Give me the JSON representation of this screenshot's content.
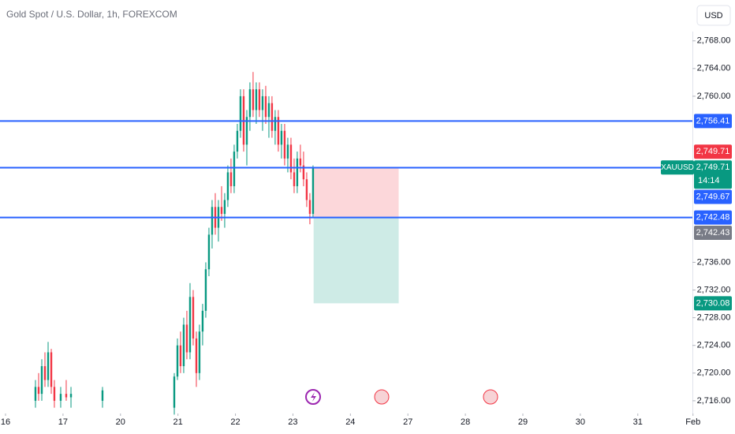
{
  "chart_data": {
    "type": "candlestick",
    "title": "Gold Spot / U.S. Dollar, 1h, FOREXCOM",
    "currency": "USD",
    "up_color": "#089981",
    "down_color": "#f23645",
    "xlim": [
      -0.096,
      11.95
    ],
    "xticks": [
      {
        "value": 0,
        "label": "16"
      },
      {
        "value": 1,
        "label": "17"
      },
      {
        "value": 2,
        "label": "20"
      },
      {
        "value": 3,
        "label": "21"
      },
      {
        "value": 4,
        "label": "22"
      },
      {
        "value": 5,
        "label": "23"
      },
      {
        "value": 6,
        "label": "24"
      },
      {
        "value": 7,
        "label": "27"
      },
      {
        "value": 8,
        "label": "28"
      },
      {
        "value": 9,
        "label": "29"
      },
      {
        "value": 10,
        "label": "30"
      },
      {
        "value": 11,
        "label": "31"
      },
      {
        "value": 11.96,
        "label": "Feb"
      }
    ],
    "ylim": [
      2711.2,
      2773.9
    ],
    "yticks": [
      {
        "value": 2716,
        "label": "2,716.00"
      },
      {
        "value": 2720,
        "label": "2,720.00"
      },
      {
        "value": 2724,
        "label": "2,724.00"
      },
      {
        "value": 2728,
        "label": "2,728.00"
      },
      {
        "value": 2732,
        "label": "2,732.00"
      },
      {
        "value": 2736,
        "label": "2,736.00"
      },
      {
        "value": 2760,
        "label": "2,760.00"
      },
      {
        "value": 2764,
        "label": "2,764.00"
      },
      {
        "value": 2768,
        "label": "2,768.00"
      }
    ],
    "x": [
      0.521,
      0.576,
      0.631,
      0.686,
      0.741,
      0.796,
      0.85,
      0.96,
      1.056,
      1.139,
      1.687,
      2.936,
      2.991,
      3.045,
      3.1,
      3.155,
      3.21,
      3.265,
      3.32,
      3.374,
      3.429,
      3.484,
      3.539,
      3.594,
      3.649,
      3.704,
      3.759,
      3.813,
      3.868,
      3.923,
      3.978,
      4.033,
      4.088,
      4.143,
      4.198,
      4.252,
      4.307,
      4.362,
      4.417,
      4.472,
      4.527,
      4.582,
      4.636,
      4.691,
      4.746,
      4.801,
      4.856,
      4.911,
      4.966,
      5.021,
      5.075,
      5.13,
      5.185,
      5.24,
      5.295,
      5.35
    ],
    "open": [
      2716,
      2718,
      2717,
      2721,
      2719,
      2723,
      2718,
      2716,
      2717,
      2716.5,
      2716,
      2715,
      2719.5,
      2724,
      2721,
      2727,
      2723,
      2731,
      2725,
      2720,
      2726,
      2729,
      2735,
      2740,
      2744,
      2741,
      2744,
      2743,
      2745,
      2749,
      2747,
      2752,
      2755,
      2760,
      2753,
      2757,
      2761,
      2758,
      2761,
      2758,
      2760,
      2757,
      2759,
      2755,
      2757,
      2753,
      2755,
      2751,
      2753,
      2749,
      2747,
      2751,
      2750,
      2748,
      2745,
      2743
    ],
    "high": [
      2719,
      2720,
      2722,
      2723,
      2724.5,
      2723.5,
      2719,
      2718,
      2719,
      2718,
      2718,
      2720,
      2725,
      2726,
      2728,
      2729,
      2733,
      2732,
      2726,
      2727,
      2730,
      2736,
      2741,
      2745,
      2746,
      2745,
      2747,
      2746,
      2750,
      2751,
      2753,
      2756,
      2761,
      2761,
      2758,
      2762,
      2763.5,
      2762,
      2762,
      2761,
      2761.5,
      2760,
      2760,
      2758,
      2758,
      2756,
      2756,
      2754,
      2754,
      2751,
      2752,
      2753,
      2752,
      2749,
      2746,
      2750
    ],
    "low": [
      2715,
      2716,
      2716,
      2718,
      2718,
      2717,
      2715,
      2715,
      2716,
      2715,
      2715,
      2714,
      2719,
      2720,
      2720,
      2722,
      2722,
      2724,
      2718,
      2719,
      2724,
      2728,
      2734,
      2738,
      2740,
      2739,
      2742,
      2741,
      2744,
      2746,
      2746,
      2751,
      2754,
      2752,
      2750,
      2755,
      2757,
      2756,
      2757,
      2755,
      2756,
      2754,
      2754,
      2753,
      2752,
      2751,
      2750,
      2749,
      2748,
      2746,
      2746,
      2749,
      2747,
      2744,
      2741.5,
      2742.5
    ],
    "close": [
      2718,
      2717,
      2721,
      2719,
      2723,
      2718,
      2716,
      2717,
      2716.5,
      2717,
      2717.5,
      2719.5,
      2724,
      2721,
      2727,
      2723,
      2731,
      2725,
      2720,
      2726,
      2729,
      2735,
      2740,
      2744,
      2741,
      2744,
      2743,
      2745,
      2749,
      2747,
      2752,
      2755,
      2760,
      2753,
      2757,
      2761,
      2758,
      2761,
      2758,
      2760,
      2757,
      2759,
      2755,
      2757,
      2753,
      2755,
      2751,
      2753,
      2749,
      2747,
      2751,
      2750,
      2748,
      2745,
      2743,
      2749.71
    ],
    "levels": [
      2756.41,
      2749.67,
      2742.48
    ],
    "level_color": "#2962ff",
    "position": {
      "x": [
        5.36,
        6.84
      ],
      "stop": 2749.67,
      "entry": 2742.48,
      "target": 2730.08
    },
    "symbol": "XAUUSD",
    "countdown": "14:14",
    "price_labels": [
      {
        "value": 2756.41,
        "label": "2,756.41",
        "color": "#2962ff"
      },
      {
        "value": 2749.71,
        "label": "2,749.71",
        "color": "#f23645"
      },
      {
        "value": 2749.71,
        "label": "2,749.71",
        "color": "#089981"
      },
      {
        "value": 2749.67,
        "label": "2,749.67",
        "color": "#2962ff"
      },
      {
        "value": 2742.48,
        "label": "2,742.48",
        "color": "#2962ff"
      },
      {
        "value": 2742.43,
        "label": "2,742.43",
        "color": "#787b86"
      },
      {
        "value": 2730.08,
        "label": "2,730.08",
        "color": "#089981"
      }
    ]
  }
}
